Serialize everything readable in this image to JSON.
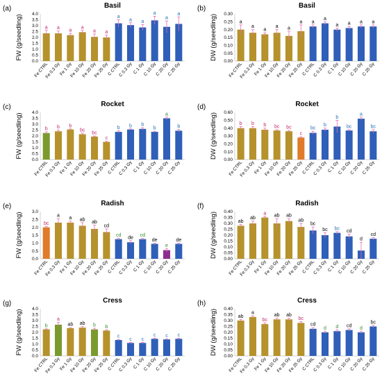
{
  "figure": {
    "colors": {
      "fe_bar": "#b5922b",
      "fe_bar_alt": "#7a9a2e",
      "fe_bar_orange": "#e07b2a",
      "c_bar": "#2f5fb8",
      "c_bar_purple": "#8b2f8f",
      "sig_fe": "#c0246a",
      "sig_c": "#1f6db5",
      "sig_green": "#2e8b2e",
      "sig_black": "#000000",
      "error": "#e46fb0"
    }
  },
  "chart_data": [
    {
      "panel": "(a)",
      "title": "Basil",
      "type": "bar",
      "ylabel": "FW (g/seedling)",
      "ylim": [
        0,
        4.0
      ],
      "yticks": [
        "0.0",
        "0.5",
        "1.0",
        "1.5",
        "2.0",
        "2.5",
        "3.0",
        "3.5",
        "4.0"
      ],
      "categories": [
        "Fe CTRL",
        "Fe 0.3 Gy",
        "Fe 1 Gy",
        "Fe 10 Gy",
        "Fe 20 Gy",
        "Fe 25 Gy",
        "C CTRL",
        "C 0.3 Gy",
        "C 1 Gy",
        "C 10 Gy",
        "C 20 Gy",
        "C 25 Gy"
      ],
      "values": [
        2.35,
        2.35,
        2.2,
        2.45,
        2.05,
        2.0,
        3.2,
        3.05,
        2.85,
        3.45,
        2.9,
        3.15
      ],
      "errors": [
        0.25,
        0.2,
        0.15,
        0.15,
        0.25,
        0.2,
        0.3,
        0.2,
        0.25,
        0.35,
        0.5,
        0.6
      ],
      "letters": [
        "a",
        "a",
        "a",
        "a",
        "a",
        "a",
        "a",
        "a",
        "a",
        "a",
        "a",
        "a"
      ],
      "bar_colors": [
        "fe_bar",
        "fe_bar",
        "fe_bar",
        "fe_bar",
        "fe_bar",
        "fe_bar",
        "c_bar",
        "c_bar",
        "c_bar",
        "c_bar",
        "c_bar",
        "c_bar"
      ],
      "letter_colors": [
        "sig_fe",
        "sig_fe",
        "sig_fe",
        "sig_fe",
        "sig_fe",
        "sig_fe",
        "sig_c",
        "sig_c",
        "sig_c",
        "sig_c",
        "sig_c",
        "sig_c"
      ]
    },
    {
      "panel": "(b)",
      "title": "Basil",
      "type": "bar",
      "ylabel": "DW (g/seedling)",
      "ylim": [
        0,
        0.3
      ],
      "yticks": [
        "0.00",
        "0.05",
        "0.10",
        "0.15",
        "0.20",
        "0.25",
        "0.30"
      ],
      "categories": [
        "Fe CTRL",
        "Fe 0.3 Gy",
        "Fe 1 Gy",
        "Fe 10 Gy",
        "Fe 20 Gy",
        "Fe 25 Gy",
        "C CTRL",
        "C 0.3 Gy",
        "C 1 Gy",
        "C 10 Gy",
        "C 20 Gy",
        "C 25 Gy"
      ],
      "values": [
        0.2,
        0.18,
        0.17,
        0.18,
        0.16,
        0.19,
        0.22,
        0.24,
        0.2,
        0.21,
        0.22,
        0.22
      ],
      "errors": [
        0.03,
        0.02,
        0.01,
        0.02,
        0.03,
        0.04,
        0.01,
        0.01,
        0.01,
        0.01,
        0.01,
        0.01
      ],
      "letters": [
        "a",
        "a",
        "a",
        "a",
        "a",
        "a",
        "a",
        "a",
        "a",
        "a",
        "a",
        "a"
      ],
      "bar_colors": [
        "fe_bar",
        "fe_bar",
        "fe_bar",
        "fe_bar",
        "fe_bar",
        "fe_bar",
        "c_bar",
        "c_bar",
        "c_bar",
        "c_bar",
        "c_bar",
        "c_bar"
      ],
      "letter_colors": [
        "sig_black",
        "sig_black",
        "sig_black",
        "sig_black",
        "sig_black",
        "sig_black",
        "sig_black",
        "sig_black",
        "sig_black",
        "sig_black",
        "sig_black",
        "sig_black"
      ]
    },
    {
      "panel": "(c)",
      "title": "Rocket",
      "type": "bar",
      "ylabel": "FW (g/seedling)",
      "ylim": [
        0,
        4.0
      ],
      "yticks": [
        "0.0",
        "0.5",
        "1.0",
        "1.5",
        "2.0",
        "2.5",
        "3.0",
        "3.5",
        "4.0"
      ],
      "categories": [
        "Fe CTRL",
        "Fe 0.3 Gy",
        "Fe 1 Gy",
        "Fe 10 Gy",
        "Fe 20 Gy",
        "Fe 25 Gy",
        "C CTRL",
        "C 0.3 Gy",
        "C 1 Gy",
        "C 10 Gy",
        "C 20 Gy",
        "C 25 Gy"
      ],
      "values": [
        2.25,
        2.4,
        2.55,
        2.15,
        1.95,
        1.5,
        2.35,
        2.55,
        2.6,
        2.35,
        3.5,
        2.45
      ],
      "errors": [
        0.1,
        0.1,
        0.05,
        0.1,
        0.05,
        0.05,
        0.1,
        0.05,
        0.1,
        0.05,
        0.1,
        0.1
      ],
      "letters": [
        "b",
        "b",
        "b",
        "bc",
        "bc",
        "c",
        "b",
        "b",
        "b",
        "b",
        "a",
        "b"
      ],
      "bar_colors": [
        "fe_bar_alt",
        "fe_bar",
        "fe_bar",
        "fe_bar",
        "fe_bar",
        "fe_bar",
        "c_bar",
        "c_bar",
        "c_bar",
        "c_bar",
        "c_bar",
        "c_bar"
      ],
      "letter_colors": [
        "sig_fe",
        "sig_fe",
        "sig_fe",
        "sig_fe",
        "sig_fe",
        "sig_fe",
        "sig_c",
        "sig_c",
        "sig_c",
        "sig_c",
        "sig_green",
        "sig_c"
      ]
    },
    {
      "panel": "(d)",
      "title": "Rocket",
      "type": "bar",
      "ylabel": "DW (g/seedling)",
      "ylim": [
        0,
        0.6
      ],
      "yticks": [
        "0.00",
        "0.10",
        "0.20",
        "0.30",
        "0.40",
        "0.50",
        "0.60"
      ],
      "categories": [
        "Fe CTRL",
        "Fe 0.3 Gy",
        "Fe 1 Gy",
        "Fe 10 Gy",
        "Fe 20 Gy",
        "Fe 25 Gy",
        "C CTRL",
        "C 0.3 Gy",
        "C 1 Gy",
        "C 10 Gy",
        "C 20 Gy",
        "C 25 Gy"
      ],
      "values": [
        0.4,
        0.4,
        0.38,
        0.37,
        0.36,
        0.28,
        0.34,
        0.38,
        0.42,
        0.37,
        0.52,
        0.36
      ],
      "errors": [
        0.02,
        0.02,
        0.02,
        0.01,
        0.01,
        0.01,
        0.02,
        0.02,
        0.08,
        0.01,
        0.02,
        0.02
      ],
      "letters": [
        "b",
        "b",
        "b",
        "bc",
        "bc",
        "c",
        "bc",
        "b",
        "b",
        "bc",
        "a",
        "bc"
      ],
      "bar_colors": [
        "fe_bar",
        "fe_bar",
        "fe_bar",
        "fe_bar",
        "fe_bar",
        "fe_bar_orange",
        "c_bar",
        "c_bar",
        "c_bar",
        "c_bar",
        "c_bar",
        "c_bar"
      ],
      "letter_colors": [
        "sig_fe",
        "sig_fe",
        "sig_fe",
        "sig_fe",
        "sig_fe",
        "sig_fe",
        "sig_c",
        "sig_c",
        "sig_c",
        "sig_c",
        "sig_c",
        "sig_c"
      ]
    },
    {
      "panel": "(e)",
      "title": "Radish",
      "type": "bar",
      "ylabel": "FW (g/seedling)",
      "ylim": [
        0,
        3.0
      ],
      "yticks": [
        "0.0",
        "0.5",
        "1.0",
        "1.5",
        "2.0",
        "2.5",
        "3.0"
      ],
      "categories": [
        "Fe CTRL",
        "Fe 0.3 Gy",
        "Fe 1 Gy",
        "Fe 10 Gy",
        "Fe 20 Gy",
        "Fe 25 Gy",
        "C CTRL",
        "C 0.3 Gy",
        "C 1 Gy",
        "C 10 Gy",
        "C 20 Gy",
        "C 25 Gy"
      ],
      "values": [
        2.0,
        2.3,
        2.3,
        2.1,
        1.9,
        1.7,
        1.25,
        1.05,
        1.25,
        0.95,
        0.55,
        0.95
      ],
      "errors": [
        0.05,
        0.25,
        0.1,
        0.2,
        0.25,
        0.2,
        0.05,
        0.1,
        0.05,
        0.05,
        0.1,
        0.05
      ],
      "letters": [
        "bc",
        "a",
        "a",
        "ab",
        "ab",
        "cd",
        "cd",
        "de",
        "cd",
        "de",
        "e",
        "de"
      ],
      "bar_colors": [
        "fe_bar_orange",
        "fe_bar",
        "fe_bar",
        "fe_bar",
        "fe_bar",
        "fe_bar",
        "c_bar",
        "c_bar",
        "c_bar",
        "c_bar",
        "c_bar_purple",
        "c_bar"
      ],
      "letter_colors": [
        "sig_fe",
        "sig_black",
        "sig_black",
        "sig_black",
        "sig_black",
        "sig_black",
        "sig_green",
        "sig_black",
        "sig_green",
        "sig_black",
        "sig_green",
        "sig_black"
      ]
    },
    {
      "panel": "(f)",
      "title": "Radish",
      "type": "bar",
      "ylabel": "DW (g/seedling)",
      "ylim": [
        0,
        0.4
      ],
      "yticks": [
        "0.00",
        "0.05",
        "0.10",
        "0.15",
        "0.20",
        "0.25",
        "0.30",
        "0.35",
        "0.40"
      ],
      "categories": [
        "Fe CTRL",
        "Fe 0.3 Gy",
        "Fe 1 Gy",
        "Fe 10 Gy",
        "Fe 20 Gy",
        "Fe 25 Gy",
        "C CTRL",
        "C 0.3 Gy",
        "C 1 Gy",
        "C 10 Gy",
        "C 20 Gy",
        "C 25 Gy"
      ],
      "values": [
        0.28,
        0.3,
        0.35,
        0.3,
        0.32,
        0.27,
        0.24,
        0.2,
        0.22,
        0.19,
        0.07,
        0.17
      ],
      "errors": [
        0.01,
        0.02,
        0.01,
        0.04,
        0.02,
        0.03,
        0.03,
        0.02,
        0.01,
        0.02,
        0.07,
        0.01
      ],
      "letters": [
        "ab",
        "ab",
        "a",
        "ab",
        "ab",
        "ab",
        "bc",
        "bc",
        "bc",
        "cd",
        "d",
        "cd"
      ],
      "bar_colors": [
        "fe_bar",
        "fe_bar",
        "fe_bar",
        "fe_bar",
        "fe_bar",
        "fe_bar",
        "c_bar",
        "c_bar",
        "c_bar",
        "c_bar",
        "c_bar",
        "c_bar"
      ],
      "letter_colors": [
        "sig_black",
        "sig_black",
        "sig_fe",
        "sig_black",
        "sig_black",
        "sig_black",
        "sig_black",
        "sig_black",
        "sig_c",
        "sig_black",
        "sig_black",
        "sig_black"
      ]
    },
    {
      "panel": "(g)",
      "title": "Cress",
      "type": "bar",
      "ylabel": "FW (g/seedling)",
      "ylim": [
        0,
        4.0
      ],
      "yticks": [
        "0.0",
        "0.5",
        "1.0",
        "1.5",
        "2.0",
        "2.5",
        "3.0",
        "3.5",
        "4.0"
      ],
      "categories": [
        "Fe CTRL",
        "Fe 0.3 Gy",
        "Fe 1 Gy",
        "Fe 10 Gy",
        "Fe 20 Gy",
        "Fe 25 Gy",
        "C CTRL",
        "C 0.3 Gy",
        "C 1 Gy",
        "C 10 Gy",
        "C 20 Gy",
        "C 25 Gy"
      ],
      "values": [
        2.25,
        2.65,
        2.35,
        2.4,
        2.25,
        2.15,
        1.35,
        1.1,
        1.1,
        1.45,
        1.4,
        1.45
      ],
      "errors": [
        0.05,
        0.2,
        0.05,
        0.1,
        0.1,
        0.05,
        0.05,
        0.05,
        0.05,
        0.05,
        0.05,
        0.05
      ],
      "letters": [
        "b",
        "a",
        "ab",
        "ab",
        "b",
        "b",
        "c",
        "c",
        "c",
        "c",
        "c",
        "c"
      ],
      "bar_colors": [
        "fe_bar",
        "fe_bar_alt",
        "fe_bar",
        "fe_bar",
        "fe_bar_alt",
        "fe_bar",
        "c_bar",
        "c_bar",
        "c_bar",
        "c_bar",
        "c_bar",
        "c_bar"
      ],
      "letter_colors": [
        "sig_green",
        "sig_fe",
        "sig_black",
        "sig_black",
        "sig_green",
        "sig_green",
        "sig_c",
        "sig_c",
        "sig_c",
        "sig_c",
        "sig_c",
        "sig_c"
      ]
    },
    {
      "panel": "(h)",
      "title": "Cress",
      "type": "bar",
      "ylabel": "DW (g/seedling)",
      "ylim": [
        0,
        0.4
      ],
      "yticks": [
        "0.00",
        "0.05",
        "0.10",
        "0.15",
        "0.20",
        "0.25",
        "0.30",
        "0.35",
        "0.40"
      ],
      "categories": [
        "Fe CTRL",
        "Fe 0.3 Gy",
        "Fe 1 Gy",
        "Fe 10 Gy",
        "Fe 20 Gy",
        "Fe 25 Gy",
        "C CTRL",
        "C 0.3 Gy",
        "C 1 Gy",
        "C 10 Gy",
        "C 20 Gy",
        "C 25 Gy"
      ],
      "values": [
        0.3,
        0.33,
        0.27,
        0.31,
        0.31,
        0.28,
        0.23,
        0.2,
        0.21,
        0.22,
        0.2,
        0.25
      ],
      "errors": [
        0.01,
        0.01,
        0.01,
        0.01,
        0.01,
        0.01,
        0.01,
        0.01,
        0.01,
        0.01,
        0.01,
        0.01
      ],
      "letters": [
        "ab",
        "a",
        "bc",
        "ab",
        "ab",
        "bc",
        "cd",
        "d",
        "d",
        "cd",
        "d",
        "bc"
      ],
      "bar_colors": [
        "fe_bar",
        "fe_bar",
        "fe_bar",
        "fe_bar",
        "fe_bar",
        "fe_bar",
        "c_bar",
        "c_bar",
        "c_bar",
        "c_bar",
        "c_bar",
        "c_bar"
      ],
      "letter_colors": [
        "sig_black",
        "sig_black",
        "sig_fe",
        "sig_black",
        "sig_black",
        "sig_fe",
        "sig_black",
        "sig_green",
        "sig_green",
        "sig_black",
        "sig_green",
        "sig_black"
      ]
    }
  ]
}
